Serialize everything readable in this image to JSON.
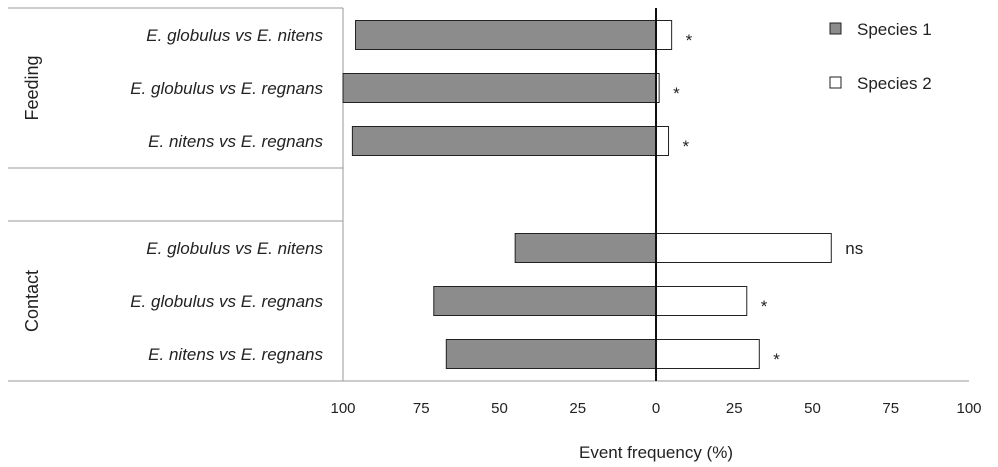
{
  "chart_data": {
    "type": "bar",
    "orientation": "horizontal-diverging",
    "xlabel": "Event frequency (%)",
    "x_ticks": [
      "100",
      "75",
      "50",
      "25",
      "0",
      "25",
      "50",
      "75",
      "100"
    ],
    "xlim": [
      -100,
      100
    ],
    "legend": {
      "position": "top-right",
      "entries": [
        "Species 1",
        "Species 2"
      ]
    },
    "colors": {
      "species1": "#8c8c8c",
      "species2": "#ffffff",
      "stroke": "#222222"
    },
    "groups": [
      {
        "name": "Feeding",
        "rows": [
          {
            "label": "E. globulus vs E. nitens",
            "species1": 96,
            "species2": 5,
            "sig": "*"
          },
          {
            "label": "E. globulus vs E. regnans",
            "species1": 100,
            "species2": 1,
            "sig": "*"
          },
          {
            "label": "E. nitens vs E. regnans",
            "species1": 97,
            "species2": 4,
            "sig": "*"
          }
        ]
      },
      {
        "name": "Contact",
        "rows": [
          {
            "label": "E. globulus vs E. nitens",
            "species1": 45,
            "species2": 56,
            "sig": "ns"
          },
          {
            "label": "E. globulus vs E. regnans",
            "species1": 71,
            "species2": 29,
            "sig": "*"
          },
          {
            "label": "E. nitens vs E. regnans",
            "species1": 67,
            "species2": 33,
            "sig": "*"
          }
        ]
      }
    ]
  }
}
